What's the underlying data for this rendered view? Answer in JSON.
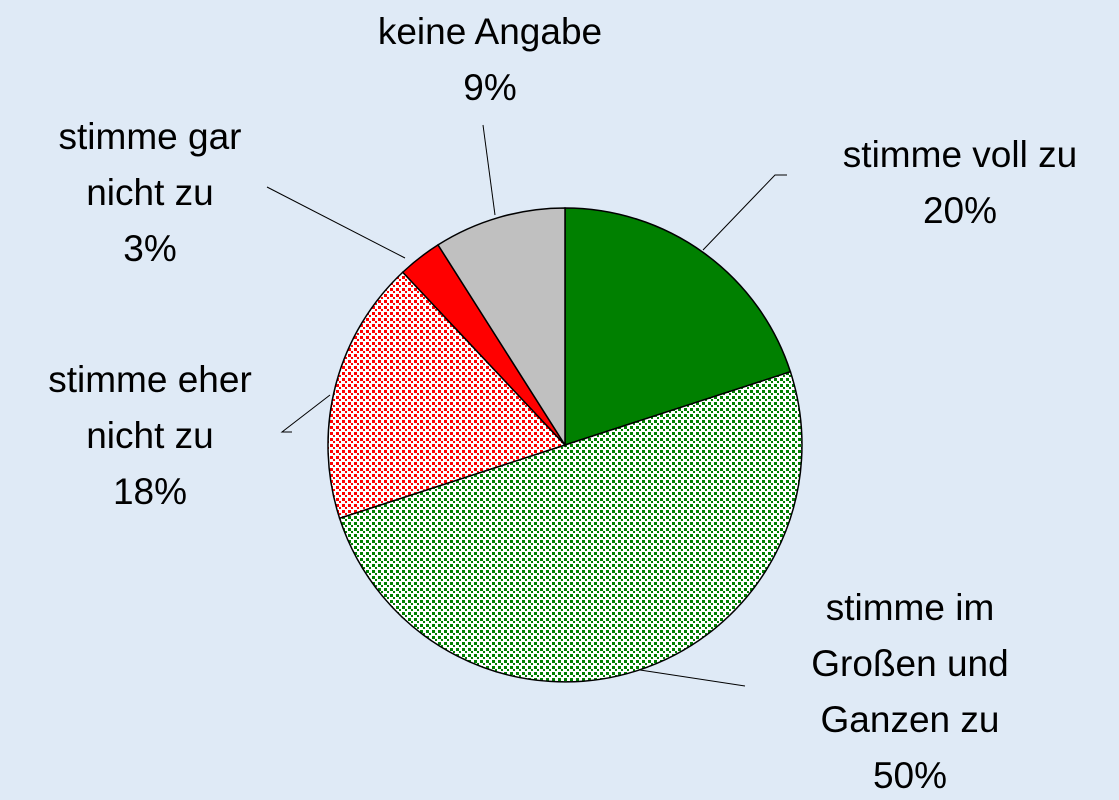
{
  "chart_data": {
    "type": "pie",
    "categories": [
      "stimme voll zu",
      "stimme im Großen und Ganzen zu",
      "stimme eher nicht zu",
      "stimme gar nicht zu",
      "keine Angabe"
    ],
    "values": [
      20,
      50,
      18,
      3,
      9
    ],
    "value_labels": [
      "20%",
      "50%",
      "18%",
      "3%",
      "9%"
    ],
    "colors": [
      "#008000",
      "#008000",
      "#ff0000",
      "#ff0000",
      "#c0c0c0"
    ],
    "patterns": [
      "solid",
      "dotted",
      "dotted",
      "solid",
      "solid"
    ]
  }
}
